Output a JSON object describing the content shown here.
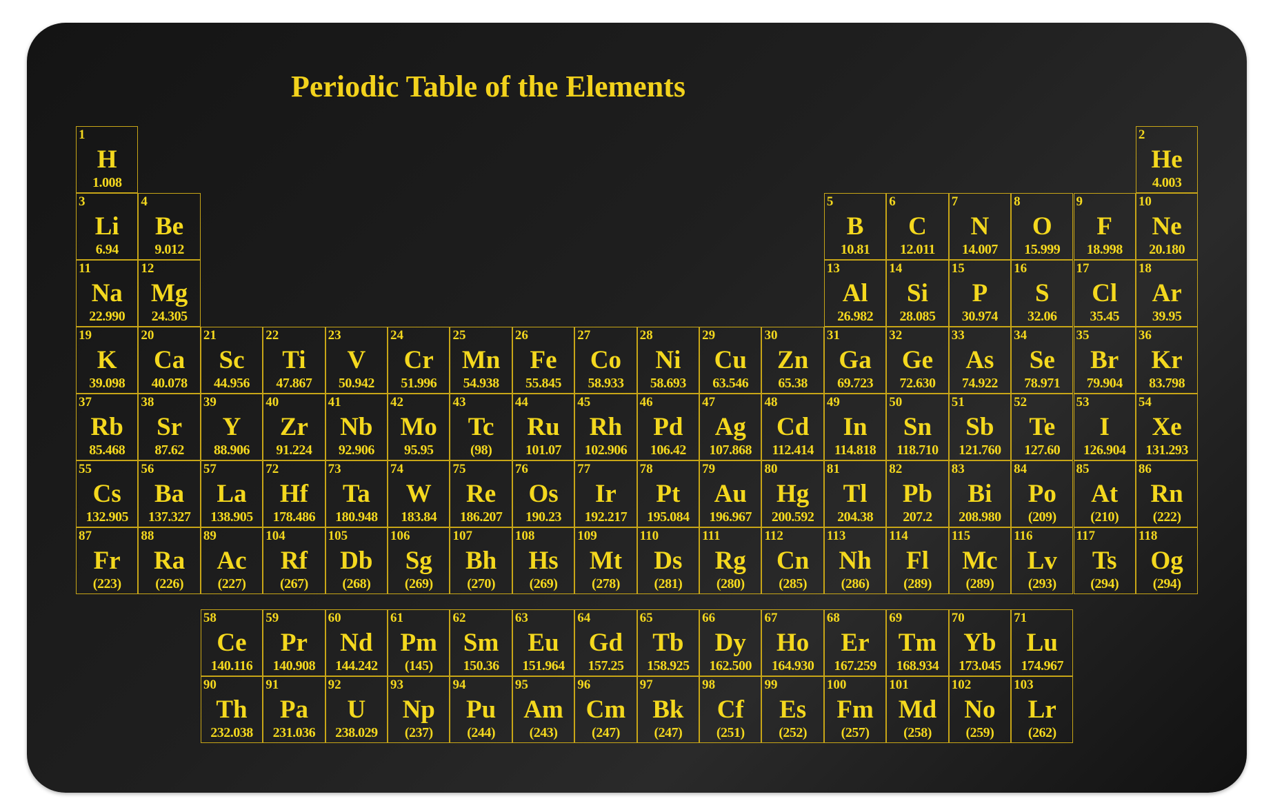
{
  "title": "Periodic Table of the Elements",
  "colors": {
    "background": "#1a1a1a",
    "text": "#f4d81e",
    "border": "#c8a617"
  },
  "elements": [
    {
      "n": "1",
      "s": "H",
      "m": "1.008",
      "period": 1,
      "group": 1
    },
    {
      "n": "2",
      "s": "He",
      "m": "4.003",
      "period": 1,
      "group": 18
    },
    {
      "n": "3",
      "s": "Li",
      "m": "6.94",
      "period": 2,
      "group": 1
    },
    {
      "n": "4",
      "s": "Be",
      "m": "9.012",
      "period": 2,
      "group": 2
    },
    {
      "n": "5",
      "s": "B",
      "m": "10.81",
      "period": 2,
      "group": 13
    },
    {
      "n": "6",
      "s": "C",
      "m": "12.011",
      "period": 2,
      "group": 14
    },
    {
      "n": "7",
      "s": "N",
      "m": "14.007",
      "period": 2,
      "group": 15
    },
    {
      "n": "8",
      "s": "O",
      "m": "15.999",
      "period": 2,
      "group": 16
    },
    {
      "n": "9",
      "s": "F",
      "m": "18.998",
      "period": 2,
      "group": 17
    },
    {
      "n": "10",
      "s": "Ne",
      "m": "20.180",
      "period": 2,
      "group": 18
    },
    {
      "n": "11",
      "s": "Na",
      "m": "22.990",
      "period": 3,
      "group": 1
    },
    {
      "n": "12",
      "s": "Mg",
      "m": "24.305",
      "period": 3,
      "group": 2
    },
    {
      "n": "13",
      "s": "Al",
      "m": "26.982",
      "period": 3,
      "group": 13
    },
    {
      "n": "14",
      "s": "Si",
      "m": "28.085",
      "period": 3,
      "group": 14
    },
    {
      "n": "15",
      "s": "P",
      "m": "30.974",
      "period": 3,
      "group": 15
    },
    {
      "n": "16",
      "s": "S",
      "m": "32.06",
      "period": 3,
      "group": 16
    },
    {
      "n": "17",
      "s": "Cl",
      "m": "35.45",
      "period": 3,
      "group": 17
    },
    {
      "n": "18",
      "s": "Ar",
      "m": "39.95",
      "period": 3,
      "group": 18
    },
    {
      "n": "19",
      "s": "K",
      "m": "39.098",
      "period": 4,
      "group": 1
    },
    {
      "n": "20",
      "s": "Ca",
      "m": "40.078",
      "period": 4,
      "group": 2
    },
    {
      "n": "21",
      "s": "Sc",
      "m": "44.956",
      "period": 4,
      "group": 3
    },
    {
      "n": "22",
      "s": "Ti",
      "m": "47.867",
      "period": 4,
      "group": 4
    },
    {
      "n": "23",
      "s": "V",
      "m": "50.942",
      "period": 4,
      "group": 5
    },
    {
      "n": "24",
      "s": "Cr",
      "m": "51.996",
      "period": 4,
      "group": 6
    },
    {
      "n": "25",
      "s": "Mn",
      "m": "54.938",
      "period": 4,
      "group": 7
    },
    {
      "n": "26",
      "s": "Fe",
      "m": "55.845",
      "period": 4,
      "group": 8
    },
    {
      "n": "27",
      "s": "Co",
      "m": "58.933",
      "period": 4,
      "group": 9
    },
    {
      "n": "28",
      "s": "Ni",
      "m": "58.693",
      "period": 4,
      "group": 10
    },
    {
      "n": "29",
      "s": "Cu",
      "m": "63.546",
      "period": 4,
      "group": 11
    },
    {
      "n": "30",
      "s": "Zn",
      "m": "65.38",
      "period": 4,
      "group": 12
    },
    {
      "n": "31",
      "s": "Ga",
      "m": "69.723",
      "period": 4,
      "group": 13
    },
    {
      "n": "32",
      "s": "Ge",
      "m": "72.630",
      "period": 4,
      "group": 14
    },
    {
      "n": "33",
      "s": "As",
      "m": "74.922",
      "period": 4,
      "group": 15
    },
    {
      "n": "34",
      "s": "Se",
      "m": "78.971",
      "period": 4,
      "group": 16
    },
    {
      "n": "35",
      "s": "Br",
      "m": "79.904",
      "period": 4,
      "group": 17
    },
    {
      "n": "36",
      "s": "Kr",
      "m": "83.798",
      "period": 4,
      "group": 18
    },
    {
      "n": "37",
      "s": "Rb",
      "m": "85.468",
      "period": 5,
      "group": 1
    },
    {
      "n": "38",
      "s": "Sr",
      "m": "87.62",
      "period": 5,
      "group": 2
    },
    {
      "n": "39",
      "s": "Y",
      "m": "88.906",
      "period": 5,
      "group": 3
    },
    {
      "n": "40",
      "s": "Zr",
      "m": "91.224",
      "period": 5,
      "group": 4
    },
    {
      "n": "41",
      "s": "Nb",
      "m": "92.906",
      "period": 5,
      "group": 5
    },
    {
      "n": "42",
      "s": "Mo",
      "m": "95.95",
      "period": 5,
      "group": 6
    },
    {
      "n": "43",
      "s": "Tc",
      "m": "(98)",
      "period": 5,
      "group": 7
    },
    {
      "n": "44",
      "s": "Ru",
      "m": "101.07",
      "period": 5,
      "group": 8
    },
    {
      "n": "45",
      "s": "Rh",
      "m": "102.906",
      "period": 5,
      "group": 9
    },
    {
      "n": "46",
      "s": "Pd",
      "m": "106.42",
      "period": 5,
      "group": 10
    },
    {
      "n": "47",
      "s": "Ag",
      "m": "107.868",
      "period": 5,
      "group": 11
    },
    {
      "n": "48",
      "s": "Cd",
      "m": "112.414",
      "period": 5,
      "group": 12
    },
    {
      "n": "49",
      "s": "In",
      "m": "114.818",
      "period": 5,
      "group": 13
    },
    {
      "n": "50",
      "s": "Sn",
      "m": "118.710",
      "period": 5,
      "group": 14
    },
    {
      "n": "51",
      "s": "Sb",
      "m": "121.760",
      "period": 5,
      "group": 15
    },
    {
      "n": "52",
      "s": "Te",
      "m": "127.60",
      "period": 5,
      "group": 16
    },
    {
      "n": "53",
      "s": "I",
      "m": "126.904",
      "period": 5,
      "group": 17
    },
    {
      "n": "54",
      "s": "Xe",
      "m": "131.293",
      "period": 5,
      "group": 18
    },
    {
      "n": "55",
      "s": "Cs",
      "m": "132.905",
      "period": 6,
      "group": 1
    },
    {
      "n": "56",
      "s": "Ba",
      "m": "137.327",
      "period": 6,
      "group": 2
    },
    {
      "n": "57",
      "s": "La",
      "m": "138.905",
      "period": 6,
      "group": 3
    },
    {
      "n": "72",
      "s": "Hf",
      "m": "178.486",
      "period": 6,
      "group": 4
    },
    {
      "n": "73",
      "s": "Ta",
      "m": "180.948",
      "period": 6,
      "group": 5
    },
    {
      "n": "74",
      "s": "W",
      "m": "183.84",
      "period": 6,
      "group": 6
    },
    {
      "n": "75",
      "s": "Re",
      "m": "186.207",
      "period": 6,
      "group": 7
    },
    {
      "n": "76",
      "s": "Os",
      "m": "190.23",
      "period": 6,
      "group": 8
    },
    {
      "n": "77",
      "s": "Ir",
      "m": "192.217",
      "period": 6,
      "group": 9
    },
    {
      "n": "78",
      "s": "Pt",
      "m": "195.084",
      "period": 6,
      "group": 10
    },
    {
      "n": "79",
      "s": "Au",
      "m": "196.967",
      "period": 6,
      "group": 11
    },
    {
      "n": "80",
      "s": "Hg",
      "m": "200.592",
      "period": 6,
      "group": 12
    },
    {
      "n": "81",
      "s": "Tl",
      "m": "204.38",
      "period": 6,
      "group": 13
    },
    {
      "n": "82",
      "s": "Pb",
      "m": "207.2",
      "period": 6,
      "group": 14
    },
    {
      "n": "83",
      "s": "Bi",
      "m": "208.980",
      "period": 6,
      "group": 15
    },
    {
      "n": "84",
      "s": "Po",
      "m": "(209)",
      "period": 6,
      "group": 16
    },
    {
      "n": "85",
      "s": "At",
      "m": "(210)",
      "period": 6,
      "group": 17
    },
    {
      "n": "86",
      "s": "Rn",
      "m": "(222)",
      "period": 6,
      "group": 18
    },
    {
      "n": "87",
      "s": "Fr",
      "m": "(223)",
      "period": 7,
      "group": 1
    },
    {
      "n": "88",
      "s": "Ra",
      "m": "(226)",
      "period": 7,
      "group": 2
    },
    {
      "n": "89",
      "s": "Ac",
      "m": "(227)",
      "period": 7,
      "group": 3
    },
    {
      "n": "104",
      "s": "Rf",
      "m": "(267)",
      "period": 7,
      "group": 4
    },
    {
      "n": "105",
      "s": "Db",
      "m": "(268)",
      "period": 7,
      "group": 5
    },
    {
      "n": "106",
      "s": "Sg",
      "m": "(269)",
      "period": 7,
      "group": 6
    },
    {
      "n": "107",
      "s": "Bh",
      "m": "(270)",
      "period": 7,
      "group": 7
    },
    {
      "n": "108",
      "s": "Hs",
      "m": "(269)",
      "period": 7,
      "group": 8
    },
    {
      "n": "109",
      "s": "Mt",
      "m": "(278)",
      "period": 7,
      "group": 9
    },
    {
      "n": "110",
      "s": "Ds",
      "m": "(281)",
      "period": 7,
      "group": 10
    },
    {
      "n": "111",
      "s": "Rg",
      "m": "(280)",
      "period": 7,
      "group": 11
    },
    {
      "n": "112",
      "s": "Cn",
      "m": "(285)",
      "period": 7,
      "group": 12
    },
    {
      "n": "113",
      "s": "Nh",
      "m": "(286)",
      "period": 7,
      "group": 13
    },
    {
      "n": "114",
      "s": "Fl",
      "m": "(289)",
      "period": 7,
      "group": 14
    },
    {
      "n": "115",
      "s": "Mc",
      "m": "(289)",
      "period": 7,
      "group": 15
    },
    {
      "n": "116",
      "s": "Lv",
      "m": "(293)",
      "period": 7,
      "group": 16
    },
    {
      "n": "117",
      "s": "Ts",
      "m": "(294)",
      "period": 7,
      "group": 17
    },
    {
      "n": "118",
      "s": "Og",
      "m": "(294)",
      "period": 7,
      "group": 18
    }
  ],
  "lanthanides": [
    {
      "n": "58",
      "s": "Ce",
      "m": "140.116"
    },
    {
      "n": "59",
      "s": "Pr",
      "m": "140.908"
    },
    {
      "n": "60",
      "s": "Nd",
      "m": "144.242"
    },
    {
      "n": "61",
      "s": "Pm",
      "m": "(145)"
    },
    {
      "n": "62",
      "s": "Sm",
      "m": "150.36"
    },
    {
      "n": "63",
      "s": "Eu",
      "m": "151.964"
    },
    {
      "n": "64",
      "s": "Gd",
      "m": "157.25"
    },
    {
      "n": "65",
      "s": "Tb",
      "m": "158.925"
    },
    {
      "n": "66",
      "s": "Dy",
      "m": "162.500"
    },
    {
      "n": "67",
      "s": "Ho",
      "m": "164.930"
    },
    {
      "n": "68",
      "s": "Er",
      "m": "167.259"
    },
    {
      "n": "69",
      "s": "Tm",
      "m": "168.934"
    },
    {
      "n": "70",
      "s": "Yb",
      "m": "173.045"
    },
    {
      "n": "71",
      "s": "Lu",
      "m": "174.967"
    }
  ],
  "actinides": [
    {
      "n": "90",
      "s": "Th",
      "m": "232.038"
    },
    {
      "n": "91",
      "s": "Pa",
      "m": "231.036"
    },
    {
      "n": "92",
      "s": "U",
      "m": "238.029"
    },
    {
      "n": "93",
      "s": "Np",
      "m": "(237)"
    },
    {
      "n": "94",
      "s": "Pu",
      "m": "(244)"
    },
    {
      "n": "95",
      "s": "Am",
      "m": "(243)"
    },
    {
      "n": "96",
      "s": "Cm",
      "m": "(247)"
    },
    {
      "n": "97",
      "s": "Bk",
      "m": "(247)"
    },
    {
      "n": "98",
      "s": "Cf",
      "m": "(251)"
    },
    {
      "n": "99",
      "s": "Es",
      "m": "(252)"
    },
    {
      "n": "100",
      "s": "Fm",
      "m": "(257)"
    },
    {
      "n": "101",
      "s": "Md",
      "m": "(258)"
    },
    {
      "n": "102",
      "s": "No",
      "m": "(259)"
    },
    {
      "n": "103",
      "s": "Lr",
      "m": "(262)"
    }
  ]
}
